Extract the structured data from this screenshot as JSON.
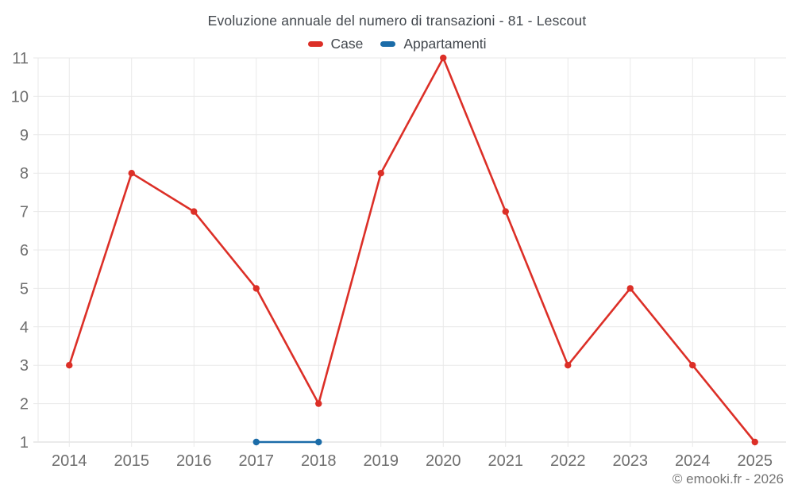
{
  "title": "Evoluzione annuale del numero di transazioni - 81 - Lescout",
  "legend": {
    "items": [
      {
        "label": "Case",
        "color": "#dc2f27"
      },
      {
        "label": "Appartamenti",
        "color": "#1b6ca8"
      }
    ]
  },
  "footer": "© emooki.fr - 2026",
  "colors": {
    "background": "#ffffff",
    "title_text": "#41464c",
    "tick_text": "#6e6e6e",
    "grid_line": "#e9e9e9",
    "axis_line": "#d4d4d4",
    "footer_text": "#757575",
    "case_red": "#dc2f27",
    "appartamenti_blue": "#1b6ca8"
  },
  "chart_data": {
    "type": "line",
    "title": "Evoluzione annuale del numero di transazioni - 81 - Lescout",
    "categories": [
      "2014",
      "2015",
      "2016",
      "2017",
      "2018",
      "2019",
      "2020",
      "2021",
      "2022",
      "2023",
      "2024",
      "2025"
    ],
    "series": [
      {
        "name": "Case",
        "color": "#dc2f27",
        "x": [
          "2014",
          "2015",
          "2016",
          "2017",
          "2018",
          "2019",
          "2020",
          "2021",
          "2022",
          "2023",
          "2024",
          "2025"
        ],
        "values": [
          3,
          8,
          7,
          5,
          2,
          8,
          11,
          7,
          3,
          5,
          3,
          1
        ]
      },
      {
        "name": "Appartamenti",
        "color": "#1b6ca8",
        "x": [
          "2017",
          "2018"
        ],
        "values": [
          1,
          1
        ]
      }
    ],
    "xlabel": "",
    "ylabel": "",
    "ylim": [
      1,
      11
    ],
    "yticks": [
      1,
      2,
      3,
      4,
      5,
      6,
      7,
      8,
      9,
      10,
      11
    ],
    "grid": true,
    "legend_position": "top",
    "markers": true
  }
}
